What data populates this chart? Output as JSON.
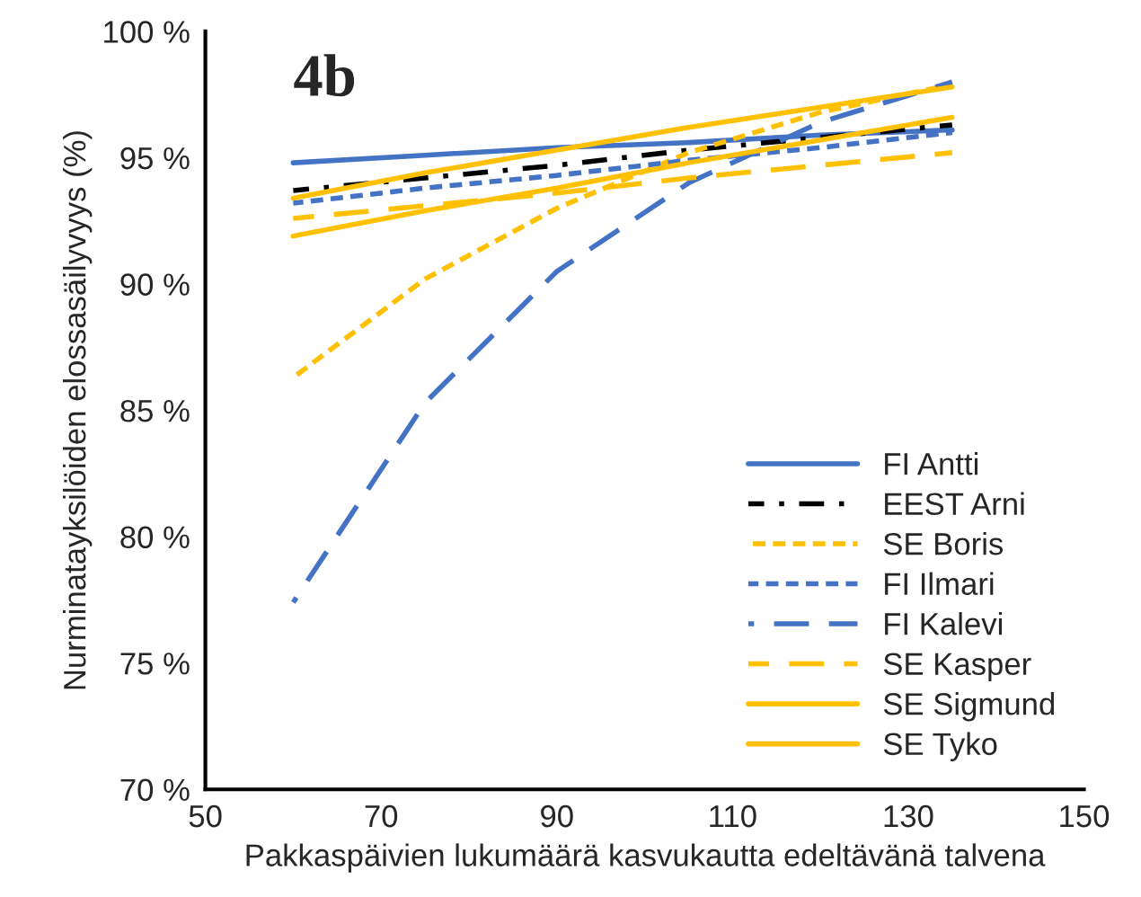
{
  "chart_data": {
    "type": "line",
    "title": "4b",
    "xlabel": "Pakkaspäivien lukumäärä kasvukautta edeltävänä talvena",
    "ylabel": "Nurminatayksilöiden elossasäilyvyys (%)",
    "x": [
      60,
      75,
      90,
      105,
      120,
      135
    ],
    "xlim": [
      50,
      150
    ],
    "xticks": [
      50,
      70,
      90,
      110,
      130,
      150
    ],
    "ylim": [
      70,
      100
    ],
    "yticks": [
      {
        "value": 70,
        "label": "70 %"
      },
      {
        "value": 75,
        "label": "75 %"
      },
      {
        "value": 80,
        "label": "80 %"
      },
      {
        "value": 85,
        "label": "85 %"
      },
      {
        "value": 90,
        "label": "90 %"
      },
      {
        "value": 95,
        "label": "95 %"
      },
      {
        "value": 100,
        "label": "100 %"
      }
    ],
    "grid": false,
    "legend": "bottom right",
    "marker": "none",
    "series": [
      {
        "name": "FI Antti",
        "color": "#4472c4",
        "line_style": "solid",
        "values": [
          94.8,
          95.1,
          95.4,
          95.6,
          95.9,
          96.1
        ]
      },
      {
        "name": "EEST Arni",
        "color": "#000000",
        "line_style": "dashdot",
        "values": [
          93.7,
          94.2,
          94.7,
          95.3,
          95.8,
          96.3
        ]
      },
      {
        "name": "SE Boris",
        "color": "#ffc000",
        "line_style": "dotted",
        "values": [
          86.3,
          90.2,
          93.0,
          95.2,
          96.8,
          97.9
        ]
      },
      {
        "name": "FI Ilmari",
        "color": "#4472c4",
        "line_style": "dotted",
        "values": [
          93.2,
          93.8,
          94.3,
          94.9,
          95.4,
          96.0
        ]
      },
      {
        "name": "FI Kalevi",
        "color": "#4472c4",
        "line_style": "dashed",
        "values": [
          77.4,
          85.3,
          90.5,
          94.0,
          96.4,
          98.0
        ]
      },
      {
        "name": "SE Kasper",
        "color": "#ffc000",
        "line_style": "dashed",
        "values": [
          92.6,
          93.1,
          93.6,
          94.2,
          94.7,
          95.2
        ]
      },
      {
        "name": "SE Sigmund",
        "color": "#ffc000",
        "line_style": "solid",
        "values": [
          91.9,
          92.9,
          93.8,
          94.8,
          95.7,
          96.6
        ]
      },
      {
        "name": "SE Tyko",
        "color": "#ffc000",
        "line_style": "solid",
        "values": [
          93.4,
          94.4,
          95.3,
          96.2,
          97.0,
          97.8
        ]
      }
    ]
  }
}
